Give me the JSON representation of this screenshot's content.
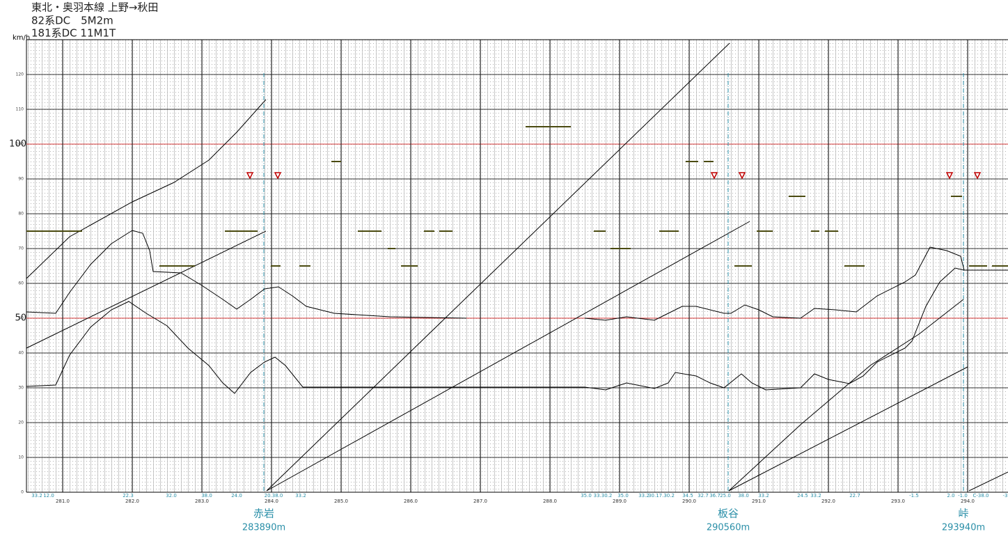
{
  "chart_data": {
    "type": "line",
    "title": "東北・奥羽本線 上野→秋田",
    "subtitles": [
      "82系DC　5M2m",
      "181系DC 11M1T"
    ],
    "y_label": "km/h",
    "xlim": [
      280.48,
      294.58
    ],
    "ylim": [
      0,
      130
    ],
    "xticks": [
      {
        "value": 281,
        "label": "281.0"
      },
      {
        "value": 282,
        "label": "282.0"
      },
      {
        "value": 283,
        "label": "283.0"
      },
      {
        "value": 284,
        "label": "284.0"
      },
      {
        "value": 285,
        "label": "285.0"
      },
      {
        "value": 286,
        "label": "286.0"
      },
      {
        "value": 287,
        "label": "287.0"
      },
      {
        "value": 288,
        "label": "288.0"
      },
      {
        "value": 289,
        "label": "289.0"
      },
      {
        "value": 290,
        "label": "290.0"
      },
      {
        "value": 291,
        "label": "291.0"
      },
      {
        "value": 292,
        "label": "292.0"
      },
      {
        "value": 293,
        "label": "293.0"
      },
      {
        "value": 294,
        "label": "294.0"
      }
    ],
    "yticks": [
      0,
      10,
      20,
      30,
      40,
      50,
      60,
      70,
      80,
      90,
      100,
      110,
      120
    ],
    "highlight_speeds": [
      50,
      100
    ],
    "highlight_color": "#d03030",
    "grid": true,
    "series": [
      {
        "color": "#000000",
        "x": [
          280.48,
          280.9,
          281.1,
          281.4,
          281.7,
          282.0,
          282.15,
          282.25,
          282.3,
          282.7,
          283.0,
          283.3,
          283.5,
          283.7,
          283.9,
          284.1,
          284.3,
          284.5,
          284.9,
          285.7,
          286.8,
          null,
          288.5,
          288.8,
          289.1,
          289.5,
          289.7,
          289.9,
          290.1,
          290.5,
          290.6,
          290.8,
          291.0,
          291.2,
          291.6,
          291.8,
          292.1,
          292.4,
          292.7,
          293.1,
          293.25,
          293.46,
          293.7,
          293.9,
          293.95,
          294.58
        ],
        "values": [
          51.8,
          51.4,
          57.4,
          65.4,
          71.4,
          75.2,
          74.4,
          69.4,
          63.4,
          63.0,
          59.4,
          55.4,
          52.6,
          55.4,
          58.4,
          59.0,
          56.4,
          53.4,
          51.4,
          50.4,
          50.0,
          null,
          50.0,
          49.4,
          50.4,
          49.4,
          51.4,
          53.4,
          53.4,
          51.4,
          51.4,
          53.8,
          52.4,
          50.4,
          50.0,
          52.8,
          52.4,
          51.8,
          56.4,
          60.4,
          62.4,
          70.4,
          69.4,
          67.8,
          63.8,
          63.8
        ]
      },
      {
        "color": "#000000",
        "x": [
          280.48,
          280.9,
          281.1,
          281.4,
          281.7,
          281.95,
          282.2,
          282.5,
          282.8,
          283.1,
          283.3,
          283.47,
          283.7,
          283.9,
          284.05,
          284.2,
          284.45,
          285.1,
          288.5,
          288.8,
          289.1,
          289.5,
          289.7,
          289.8,
          290.1,
          290.3,
          290.5,
          290.75,
          290.9,
          291.1,
          291.6,
          291.8,
          292.0,
          292.3,
          292.5,
          292.7,
          293.1,
          293.2,
          293.4,
          293.6,
          293.82,
          293.95
        ],
        "values": [
          30.4,
          30.8,
          39.4,
          47.4,
          52.4,
          54.8,
          51.4,
          47.8,
          41.4,
          36.4,
          31.4,
          28.4,
          34.4,
          37.4,
          38.8,
          36.4,
          30.2,
          30.2,
          30.2,
          29.4,
          31.4,
          29.8,
          31.4,
          34.4,
          33.4,
          31.4,
          30.0,
          34.0,
          31.4,
          29.4,
          30.0,
          34.0,
          32.4,
          31.2,
          33.4,
          37.4,
          41.4,
          43.4,
          53.4,
          60.4,
          64.4,
          63.8
        ]
      },
      {
        "color": "#000000",
        "x": [
          280.48,
          281.1,
          282.0,
          282.6,
          283.1,
          283.5,
          283.92
        ],
        "values": [
          61.4,
          73.4,
          83.4,
          89.0,
          95.4,
          103.4,
          112.8
        ]
      },
      {
        "color": "#000000",
        "x": [
          280.48,
          283.92
        ],
        "values": [
          41.4,
          75.0
        ]
      },
      {
        "color": "#000000",
        "x": [
          283.93,
          290.58
        ],
        "values": [
          0.4,
          129.0
        ]
      },
      {
        "color": "#000000",
        "x": [
          283.93,
          290.87
        ],
        "values": [
          0.4,
          77.8
        ]
      },
      {
        "color": "#000000",
        "x": [
          290.57,
          291.6,
          292.6,
          293.3,
          293.94
        ],
        "values": [
          0.4,
          19.4,
          36.4,
          45.4,
          55.4
        ]
      },
      {
        "color": "#000000",
        "x": [
          290.57,
          294.0
        ],
        "values": [
          0.4,
          36.0
        ]
      },
      {
        "color": "#000000",
        "x": [
          294.02,
          294.58
        ],
        "values": [
          0.4,
          5.8
        ]
      }
    ],
    "limit_segments": {
      "color": "#4a4a10",
      "x_start": [
        280.48,
        282.39,
        283.33,
        283.99,
        284.4,
        284.86,
        285.24,
        285.67,
        285.86,
        286.19,
        286.41,
        287.65,
        288.63,
        288.87,
        289.57,
        289.95,
        290.21,
        290.65,
        290.97,
        291.43,
        291.75,
        291.95,
        292.23,
        293.76,
        294.02,
        294.35
      ],
      "x_end": [
        281.28,
        282.9,
        283.8,
        284.13,
        284.56,
        285.0,
        285.58,
        285.78,
        286.1,
        286.34,
        286.6,
        288.3,
        288.8,
        289.16,
        289.85,
        290.13,
        290.35,
        290.9,
        291.2,
        291.67,
        291.87,
        292.14,
        292.52,
        293.92,
        294.28,
        294.58
      ],
      "values": [
        75,
        65,
        75,
        65,
        65,
        95,
        75,
        70,
        65,
        75,
        75,
        105,
        75,
        70,
        75,
        95,
        95,
        65,
        75,
        85,
        75,
        75,
        65,
        85,
        65,
        65
      ]
    },
    "signal_markers": {
      "color": "#c00000",
      "x": [
        283.69,
        284.09,
        290.36,
        290.76,
        293.74,
        294.14
      ],
      "values": [
        91,
        91,
        91,
        91,
        91,
        91
      ]
    },
    "stations": [
      {
        "name": "赤岩",
        "km": 283.89,
        "label": "283890m"
      },
      {
        "name": "板谷",
        "km": 290.56,
        "label": "290560m"
      },
      {
        "name": "峠",
        "km": 293.94,
        "label": "293940m"
      }
    ],
    "gradient_labels": [
      {
        "x": 280.63,
        "label": "33.2"
      },
      {
        "x": 280.8,
        "label": "12.0"
      },
      {
        "x": 281.94,
        "label": "22.3"
      },
      {
        "x": 282.56,
        "label": "32.0"
      },
      {
        "x": 283.07,
        "label": "38.0"
      },
      {
        "x": 283.5,
        "label": "24.0"
      },
      {
        "x": 284.03,
        "label": "20.38.0"
      },
      {
        "x": 284.42,
        "label": "33.2"
      },
      {
        "x": 288.52,
        "label": "35.0"
      },
      {
        "x": 288.76,
        "label": "33.30.2"
      },
      {
        "x": 289.05,
        "label": "35.0"
      },
      {
        "x": 289.35,
        "label": "33.2"
      },
      {
        "x": 289.6,
        "label": "30.17.30.2"
      },
      {
        "x": 289.98,
        "label": "34.5"
      },
      {
        "x": 290.2,
        "label": "32.7"
      },
      {
        "x": 290.37,
        "label": "36.7"
      },
      {
        "x": 290.52,
        "label": "25.0"
      },
      {
        "x": 290.78,
        "label": "38.0"
      },
      {
        "x": 291.07,
        "label": "33.2"
      },
      {
        "x": 291.63,
        "label": "24.5"
      },
      {
        "x": 291.82,
        "label": "33.2"
      },
      {
        "x": 292.38,
        "label": "22.7"
      },
      {
        "x": 293.23,
        "label": "-1.5"
      },
      {
        "x": 293.76,
        "label": "2.0"
      },
      {
        "x": 293.93,
        "label": "-1.0"
      },
      {
        "x": 294.19,
        "label": "C-38.0"
      },
      {
        "x": 294.54,
        "label": "-3"
      }
    ]
  }
}
